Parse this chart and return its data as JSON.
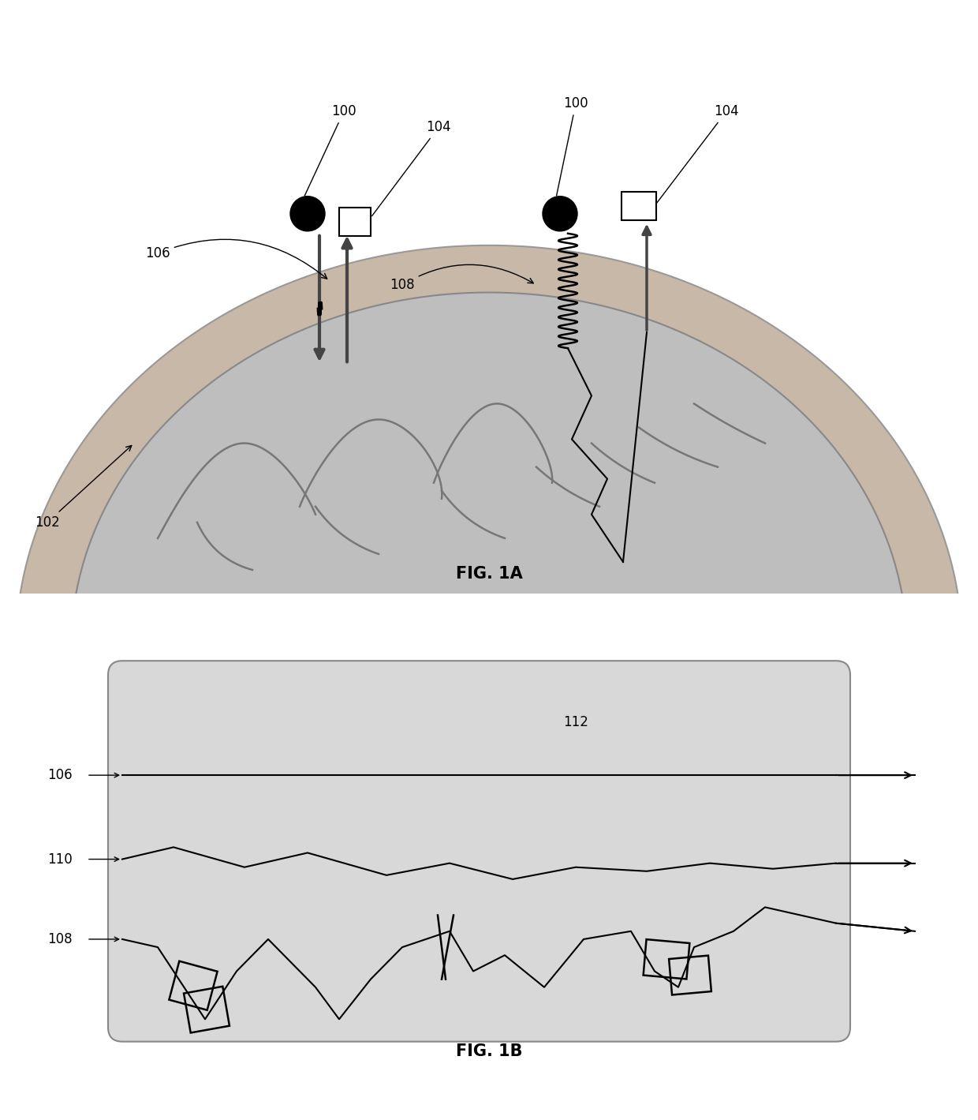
{
  "bg_color": "#ffffff",
  "fig_width": 12.4,
  "fig_height": 14.19,
  "fig1a_title": "FIG. 1A",
  "fig1b_title": "FIG. 1B",
  "brain_fill": "#bebebe",
  "brain_outline": "#888888",
  "scalp_fill": "#c8b8a8",
  "scalp_outline": "#999999",
  "arrow_color": "#444444",
  "label_color": "#000000",
  "medium_fill": "#d8d8d8",
  "medium_outline": "#888888",
  "label_fontsize": 12,
  "title_fontsize": 15
}
